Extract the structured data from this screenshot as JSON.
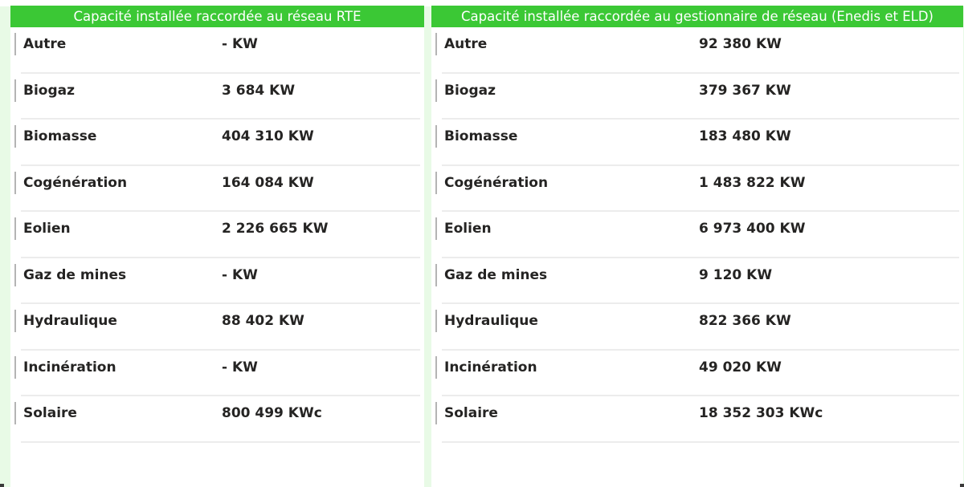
{
  "colors": {
    "header_bg": "#3bc835",
    "header_text": "#ffffff",
    "page_bg": "#e8fae6",
    "row_text": "#252423",
    "separator": "#ececec",
    "marker": "#b4b4b4"
  },
  "rte_panel": {
    "title": "Capacité installée raccordée au réseau RTE",
    "rows": [
      {
        "label": "Autre",
        "value": "- KW"
      },
      {
        "label": "Biogaz",
        "value": "3 684 KW"
      },
      {
        "label": "Biomasse",
        "value": "404 310 KW"
      },
      {
        "label": "Cogénération",
        "value": "164 084 KW"
      },
      {
        "label": "Eolien",
        "value": "2 226 665 KW"
      },
      {
        "label": "Gaz de mines",
        "value": "- KW"
      },
      {
        "label": "Hydraulique",
        "value": "88 402 KW"
      },
      {
        "label": "Incinération",
        "value": "- KW"
      },
      {
        "label": "Solaire",
        "value": "800 499 KWc"
      }
    ]
  },
  "dso_panel": {
    "title": "Capacité installée raccordée au gestionnaire de réseau (Enedis et ELD)",
    "rows": [
      {
        "label": "Autre",
        "value": "92 380 KW"
      },
      {
        "label": "Biogaz",
        "value": "379 367 KW"
      },
      {
        "label": "Biomasse",
        "value": "183 480 KW"
      },
      {
        "label": "Cogénération",
        "value": "1 483 822 KW"
      },
      {
        "label": "Eolien",
        "value": "6 973 400 KW"
      },
      {
        "label": "Gaz de mines",
        "value": "9 120 KW"
      },
      {
        "label": "Hydraulique",
        "value": "822 366 KW"
      },
      {
        "label": "Incinération",
        "value": "49 020 KW"
      },
      {
        "label": "Solaire",
        "value": "18 352 303 KWc"
      }
    ]
  }
}
